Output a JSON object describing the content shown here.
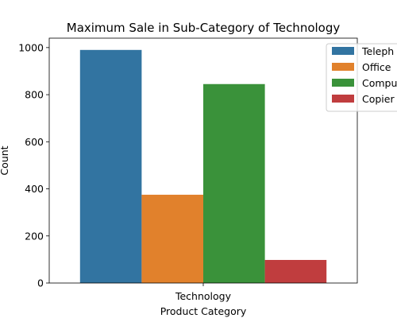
{
  "chart_data": {
    "type": "bar",
    "title": "Maximum Sale in Sub-Category of Technology",
    "xlabel": "Product Category",
    "ylabel": "Count",
    "categories": [
      "Technology"
    ],
    "ylim": [
      0,
      1040
    ],
    "yticks": [
      0,
      200,
      400,
      600,
      800,
      1000
    ],
    "grid": false,
    "legend_position": "top-right",
    "series": [
      {
        "name": "Telephones and Communication",
        "legend_text": "Teleph",
        "values": [
          990
        ],
        "color": "#3274a1"
      },
      {
        "name": "Office Machines",
        "legend_text": "Office",
        "values": [
          375
        ],
        "color": "#e1812c"
      },
      {
        "name": "Computer Peripherals",
        "legend_text": "Compu",
        "values": [
          845
        ],
        "color": "#3a923a"
      },
      {
        "name": "Copiers and Fax",
        "legend_text": "Copier",
        "values": [
          98
        ],
        "color": "#c03d3e"
      }
    ]
  }
}
